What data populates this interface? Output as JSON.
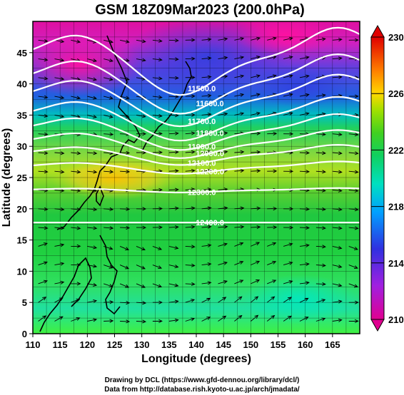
{
  "title": "GSM 18Z09Mar2023 (200.0hPa)",
  "xlabel": "Longitude (degrees)",
  "ylabel": "Latitude (degrees)",
  "credits": [
    "Drawing by DCL (https://www.gfd-dennou.org/library/dcl/)",
    "Data from http://database.rish.kyoto-u.ac.jp/arch/jmadata/"
  ],
  "chart_data": {
    "type": "heatmap",
    "xlim": [
      110,
      170
    ],
    "ylim": [
      0,
      50
    ],
    "xticks": [
      "110",
      "115",
      "120",
      "125",
      "130",
      "135",
      "140",
      "145",
      "150",
      "155",
      "160",
      "165"
    ],
    "yticks": [
      "0",
      "5",
      "10",
      "15",
      "20",
      "25",
      "30",
      "35",
      "40",
      "45"
    ],
    "colorbar": {
      "min": 210,
      "max": 230,
      "labels": [
        "230",
        "226",
        "222",
        "218",
        "214",
        "210"
      ],
      "colors": [
        "#e00090",
        "#3030e0",
        "#00c8ff",
        "#00e090",
        "#20d020",
        "#a0e000",
        "#ffd800",
        "#ff6000",
        "#e00000"
      ]
    },
    "contours": [
      {
        "label": "11500.0",
        "lat": 44.2
      },
      {
        "label": "11600.0",
        "lat": 40.5
      },
      {
        "label": "11700.0",
        "lat": 37.8
      },
      {
        "label": "11800.0",
        "lat": 34.8
      },
      {
        "label": "11900.0",
        "lat": 32.6
      },
      {
        "label": "12000.0",
        "lat": 30.6
      },
      {
        "label": "12100.0",
        "lat": 28.8
      },
      {
        "label": "12200.0",
        "lat": 26.7
      },
      {
        "label": "12300.0",
        "lat": 23.0
      },
      {
        "label": "12400.0",
        "lat": 17.8
      }
    ]
  }
}
